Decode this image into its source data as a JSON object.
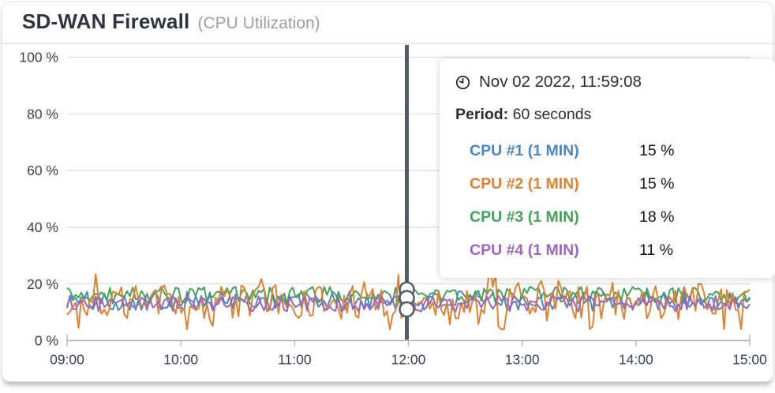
{
  "header": {
    "title": "SD-WAN Firewall",
    "subtitle": "(CPU Utilization)"
  },
  "tooltip": {
    "timestamp": "Nov 02 2022, 11:59:08",
    "period_label": "Period:",
    "period_value": "60 seconds",
    "rows": [
      {
        "label": "CPU #1 (1 MIN)",
        "value": "15 %",
        "color": "#4a86c8"
      },
      {
        "label": "CPU #2 (1 MIN)",
        "value": "15 %",
        "color": "#e0812f"
      },
      {
        "label": "CPU #3 (1 MIN)",
        "value": "18 %",
        "color": "#41a35a"
      },
      {
        "label": "CPU #4 (1 MIN)",
        "value": "11 %",
        "color": "#9a67bf"
      }
    ]
  },
  "chart_data": {
    "type": "line",
    "title": "SD-WAN Firewall",
    "subtitle": "CPU Utilization",
    "x": {
      "tick_labels": [
        "09:00",
        "10:00",
        "11:00",
        "12:00",
        "13:00",
        "14:00",
        "15:00"
      ]
    },
    "y": {
      "tick_labels": [
        "0 %",
        "20 %",
        "40 %",
        "60 %",
        "80 %",
        "100 %"
      ],
      "min": 0,
      "max": 100,
      "unit": "%",
      "gridline_values": [
        100,
        80,
        60,
        40,
        20
      ]
    },
    "grid": true,
    "legend_position": "tooltip-overlay",
    "cursor": {
      "date": "Nov 02 2022",
      "time": "11:59:08",
      "x_fraction": 0.4977,
      "marker_values": [
        18,
        15,
        11
      ]
    },
    "series": [
      {
        "name": "CPU #1 (1 MIN)",
        "color": "#4a86c8",
        "value_at_cursor": 15,
        "approx_mean": 14,
        "approx_min": 8,
        "approx_max": 19,
        "jitter": 3.5,
        "spike_chance": 0,
        "spike_amp": 0,
        "seed": 101
      },
      {
        "name": "CPU #2 (1 MIN)",
        "color": "#e0812f",
        "value_at_cursor": 15,
        "approx_mean": 13.5,
        "approx_min": 4,
        "approx_max": 26.5,
        "jitter": 6,
        "spike_chance": 0.22,
        "spike_amp": 6,
        "seed": 202
      },
      {
        "name": "CPU #3 (1 MIN)",
        "color": "#41a35a",
        "value_at_cursor": 18,
        "approx_mean": 16,
        "approx_min": 11,
        "approx_max": 21,
        "jitter": 3,
        "spike_chance": 0,
        "spike_amp": 0,
        "seed": 303
      },
      {
        "name": "CPU #4 (1 MIN)",
        "color": "#9a67bf",
        "value_at_cursor": 11,
        "approx_mean": 13,
        "approx_min": 9,
        "approx_max": 17.5,
        "jitter": 2.8,
        "spike_chance": 0,
        "spike_amp": 0,
        "seed": 404
      }
    ],
    "colors": {
      "cursor": "#4d5d6c",
      "grid": "#e0e1e3",
      "axis": "#b2b8bd",
      "tick_text": "#39424b"
    }
  }
}
